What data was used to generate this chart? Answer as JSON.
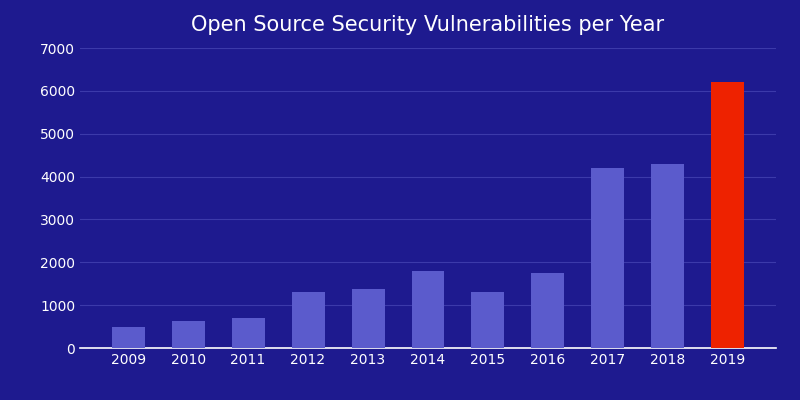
{
  "title": "Open Source Security Vulnerabilities per Year",
  "categories": [
    "2009",
    "2010",
    "2011",
    "2012",
    "2013",
    "2014",
    "2015",
    "2016",
    "2017",
    "2018",
    "2019"
  ],
  "values": [
    480,
    620,
    700,
    1300,
    1380,
    1800,
    1300,
    1750,
    4200,
    4300,
    6200
  ],
  "bar_colors": [
    "#5b5bcc",
    "#5b5bcc",
    "#5b5bcc",
    "#5b5bcc",
    "#5b5bcc",
    "#5b5bcc",
    "#5b5bcc",
    "#5b5bcc",
    "#5b5bcc",
    "#5b5bcc",
    "#ee2200"
  ],
  "background_color": "#1e1a8f",
  "text_color": "#ffffff",
  "grid_color": "#3c3aaa",
  "title_fontsize": 15,
  "tick_fontsize": 10,
  "ylim": [
    0,
    7000
  ],
  "yticks": [
    0,
    1000,
    2000,
    3000,
    4000,
    5000,
    6000,
    7000
  ],
  "bar_width": 0.55
}
